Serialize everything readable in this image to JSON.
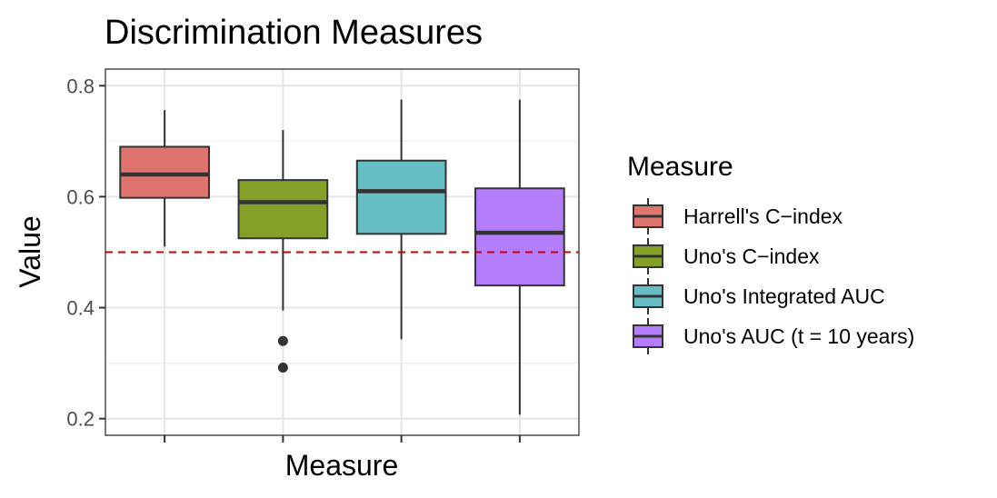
{
  "chart_data": {
    "type": "boxplot",
    "title": "Discrimination Measures",
    "xlabel": "Measure",
    "ylabel": "Value",
    "ylim": [
      0.17,
      0.83
    ],
    "yticks": [
      0.2,
      0.4,
      0.6,
      0.8
    ],
    "yticklabels": [
      "0.2",
      "0.4",
      "0.6",
      "0.8"
    ],
    "grid": true,
    "reference_line": {
      "y": 0.5,
      "color": "#cc0000",
      "style": "dashed"
    },
    "legend": {
      "title": "Measure",
      "placement": "right"
    },
    "series": [
      {
        "name": "Harrell's C−index",
        "color": "#e0746e",
        "whisker_low": 0.51,
        "q1": 0.598,
        "median": 0.64,
        "q3": 0.69,
        "whisker_high": 0.756,
        "outliers": []
      },
      {
        "name": "Uno's C−index",
        "color": "#85a028",
        "whisker_low": 0.395,
        "q1": 0.525,
        "median": 0.59,
        "q3": 0.63,
        "whisker_high": 0.72,
        "outliers": [
          0.34,
          0.292
        ]
      },
      {
        "name": "Uno's Integrated AUC",
        "color": "#67bec5",
        "whisker_low": 0.343,
        "q1": 0.533,
        "median": 0.61,
        "q3": 0.665,
        "whisker_high": 0.775,
        "outliers": []
      },
      {
        "name": "Uno's AUC (t = 10 years)",
        "color": "#b37dfb",
        "whisker_low": 0.207,
        "q1": 0.44,
        "median": 0.535,
        "q3": 0.615,
        "whisker_high": 0.775,
        "outliers": []
      }
    ]
  }
}
